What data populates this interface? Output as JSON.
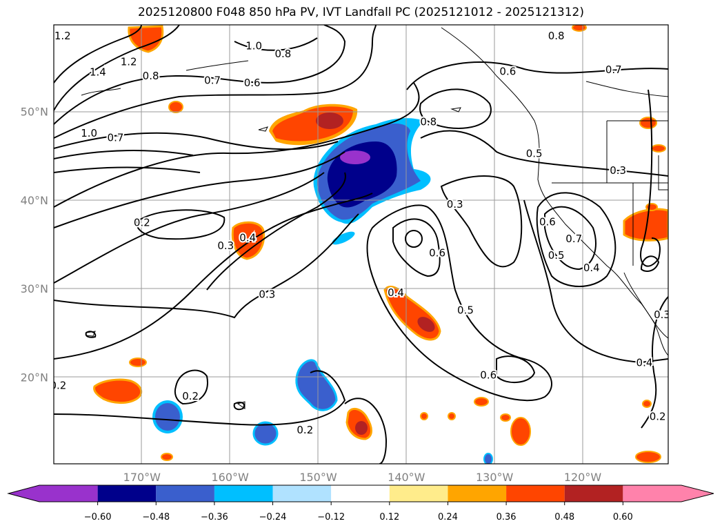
{
  "title": "2025120800 F048 850 hPa PV, IVT Landfall PC (2025121012 - 2025121312)",
  "map": {
    "lon_range": [
      -180,
      -110.3
    ],
    "lat_range": [
      10.2,
      59.8
    ],
    "lon_labels": [
      {
        "lon": -170,
        "text": "170°W"
      },
      {
        "lon": -160,
        "text": "160°W"
      },
      {
        "lon": -150,
        "text": "150°W"
      },
      {
        "lon": -140,
        "text": "140°W"
      },
      {
        "lon": -130,
        "text": "130°W"
      },
      {
        "lon": -120,
        "text": "120°W"
      }
    ],
    "lat_labels": [
      {
        "lat": 50,
        "text": "50°N"
      },
      {
        "lat": 40,
        "text": "40°N"
      },
      {
        "lat": 30,
        "text": "30°N"
      },
      {
        "lat": 20,
        "text": "20°N"
      }
    ],
    "contour_labels": [
      {
        "text": "1.2",
        "lon": -179,
        "lat": 58.5
      },
      {
        "text": "1.4",
        "lon": -175,
        "lat": 54.4
      },
      {
        "text": "1.2",
        "lon": -171.5,
        "lat": 55.6
      },
      {
        "text": "0.8",
        "lon": -169,
        "lat": 54
      },
      {
        "text": "1.0",
        "lon": -176,
        "lat": 47.5
      },
      {
        "text": "0.7",
        "lon": -173,
        "lat": 47
      },
      {
        "text": "0.7",
        "lon": -162,
        "lat": 53.5
      },
      {
        "text": "0.6",
        "lon": -157.5,
        "lat": 53.2
      },
      {
        "text": "1.0",
        "lon": -157.3,
        "lat": 57.4
      },
      {
        "text": "0.8",
        "lon": -154,
        "lat": 56.5
      },
      {
        "text": "0.8",
        "lon": -137.5,
        "lat": 48.8
      },
      {
        "text": "0.6",
        "lon": -128.5,
        "lat": 54.5
      },
      {
        "text": "0.7",
        "lon": -116.5,
        "lat": 54.7
      },
      {
        "text": "0.8",
        "lon": -123,
        "lat": 58.5
      },
      {
        "text": "0.5",
        "lon": -125.5,
        "lat": 45.2
      },
      {
        "text": "0.3",
        "lon": -116,
        "lat": 43.3
      },
      {
        "text": "0.2",
        "lon": -170,
        "lat": 37.4
      },
      {
        "text": "0.3",
        "lon": -160.5,
        "lat": 34.8
      },
      {
        "text": "0.4",
        "lon": -158,
        "lat": 35.7
      },
      {
        "text": "0.3",
        "lon": -155.8,
        "lat": 29.3
      },
      {
        "text": "0.3",
        "lon": -134.5,
        "lat": 39.5
      },
      {
        "text": "0.6",
        "lon": -136.5,
        "lat": 34
      },
      {
        "text": "0.4",
        "lon": -141.2,
        "lat": 29.5
      },
      {
        "text": "0.5",
        "lon": -133.3,
        "lat": 27.5
      },
      {
        "text": "0.6",
        "lon": -124,
        "lat": 37.5
      },
      {
        "text": "0.7",
        "lon": -121,
        "lat": 35.6
      },
      {
        "text": "0.5",
        "lon": -123,
        "lat": 33.7
      },
      {
        "text": "0.4",
        "lon": -119,
        "lat": 32.3
      },
      {
        "text": "0.6",
        "lon": -130.7,
        "lat": 20.2
      },
      {
        "text": "0.4",
        "lon": -113,
        "lat": 21.6
      },
      {
        "text": "0.3",
        "lon": -111,
        "lat": 27
      },
      {
        "text": "0.2",
        "lon": -111.5,
        "lat": 15.5
      },
      {
        "text": "0.2",
        "lon": -164.5,
        "lat": 17.8
      },
      {
        "text": "0.2",
        "lon": -151.5,
        "lat": 14
      },
      {
        "text": "0.2",
        "lon": -179.5,
        "lat": 19
      }
    ]
  },
  "colorbar": {
    "colors": [
      "#9932cc",
      "#00008b",
      "#3a5fcd",
      "#00bfff",
      "#b0e2ff",
      "#ffffff",
      "#ffec8b",
      "#ffa500",
      "#ff4500",
      "#b22222",
      "#ff82ab"
    ],
    "tick_labels": [
      "−0.60",
      "−0.48",
      "−0.36",
      "−0.24",
      "−0.12",
      "0.12",
      "0.24",
      "0.36",
      "0.48",
      "0.60"
    ],
    "extend": "both"
  }
}
